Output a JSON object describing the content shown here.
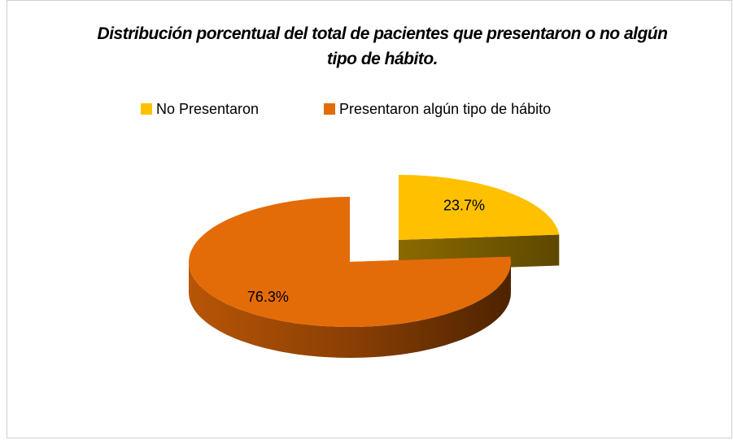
{
  "chart_data": {
    "type": "pie3d",
    "title": "Distribución porcentual del total de pacientes que presentaron  o no algún tipo de hábito.",
    "categories": [
      "No Presentaron",
      "Presentaron algún tipo de hábito"
    ],
    "values": [
      23.7,
      76.3
    ],
    "value_labels": [
      "23.7%",
      "76.3%"
    ],
    "colors": [
      "#ffc000",
      "#e36c09"
    ],
    "legend": "top"
  }
}
